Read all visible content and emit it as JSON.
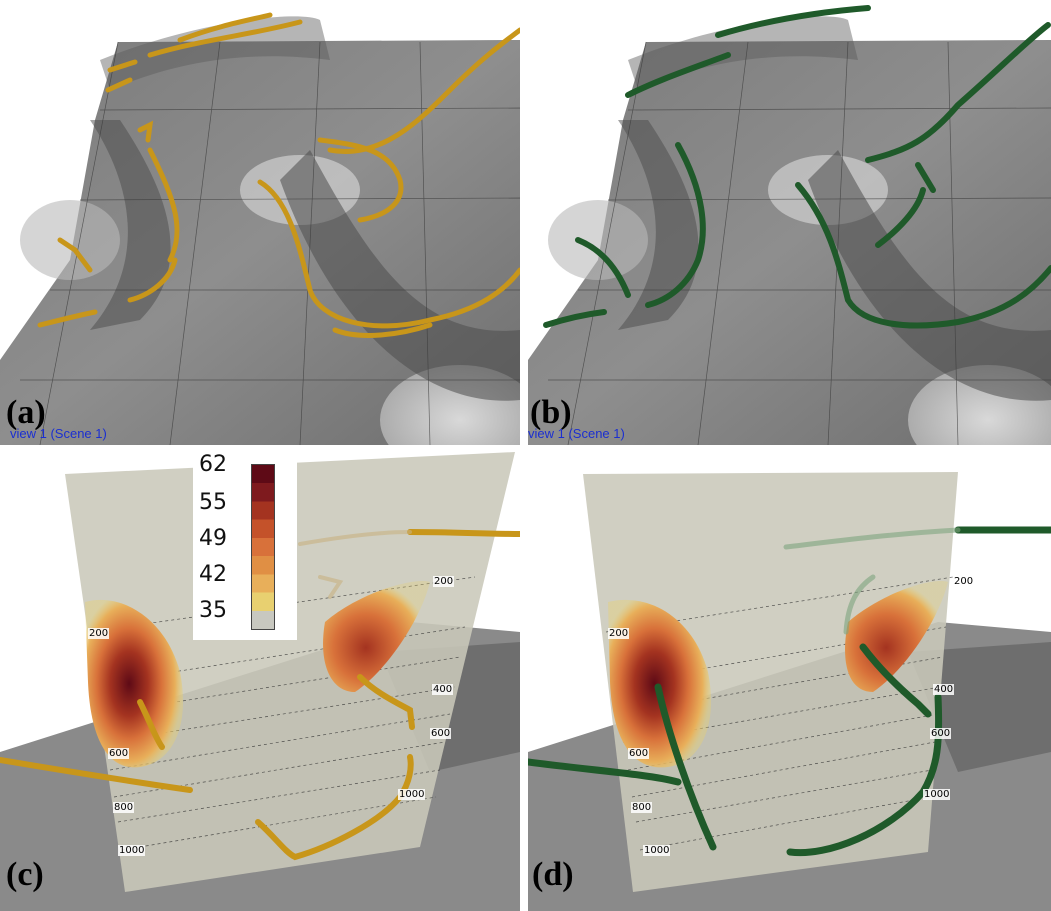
{
  "panels": {
    "a": {
      "label": "(a)",
      "view_label": "view 1 (Scene 1)",
      "tube_color": "#c8961a"
    },
    "b": {
      "label": "(b)",
      "view_label": "view 1 (Scene 1)",
      "tube_color": "#1f5a2a"
    },
    "c": {
      "label": "(c)",
      "tube_color": "#c8961a"
    },
    "d": {
      "label": "(d)",
      "tube_color": "#1f5a2a"
    }
  },
  "legend": {
    "labels": [
      "62",
      "55",
      "49",
      "42",
      "35"
    ],
    "colors": [
      "#5e0a16",
      "#7e1a1e",
      "#a43320",
      "#c4522a",
      "#d8713a",
      "#e08f44",
      "#e8af5a",
      "#e8d070",
      "#c8c8c0"
    ]
  },
  "pressure_ticks": {
    "left": [
      "200",
      "400",
      "600",
      "800",
      "1000"
    ],
    "right": [
      "200",
      "400",
      "600",
      "800",
      "1000"
    ]
  }
}
